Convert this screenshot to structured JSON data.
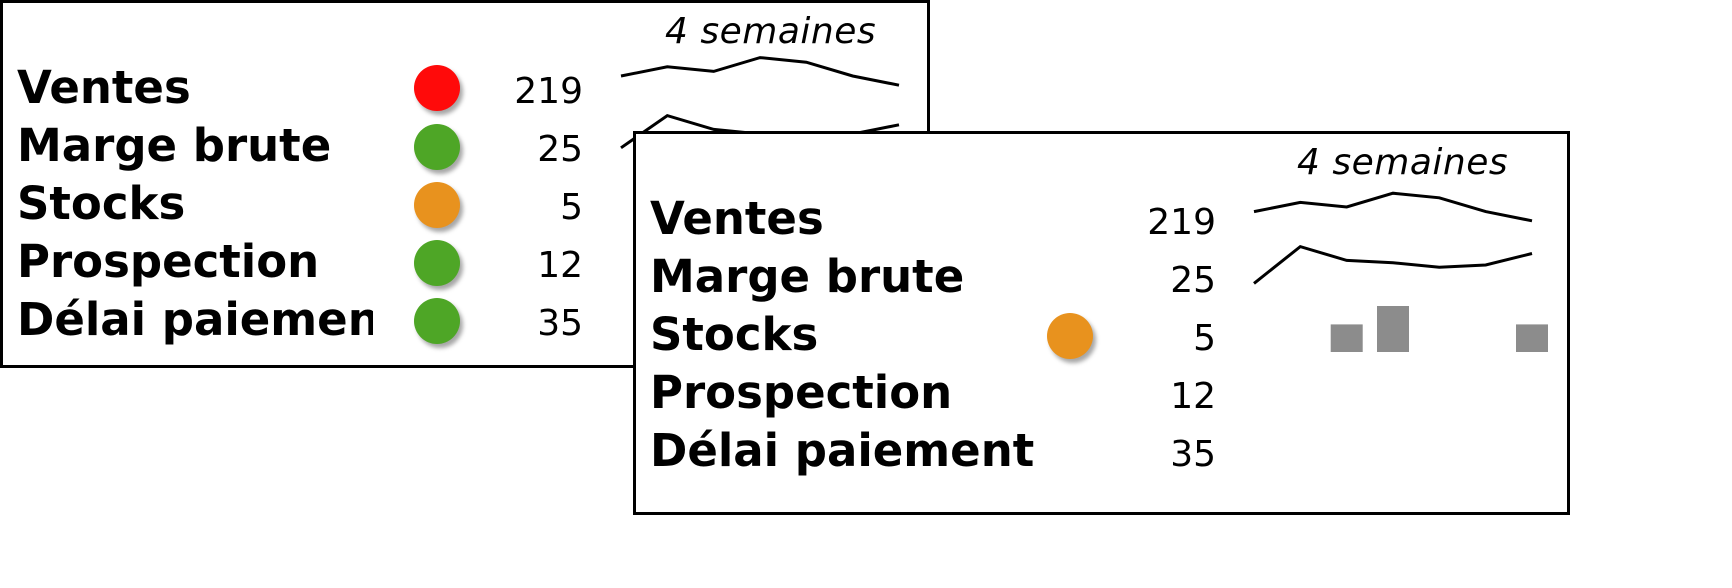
{
  "colors": {
    "red": "#ff0a0a",
    "green": "#4ea626",
    "orange": "#e8921e",
    "bar": "#8c8c8c"
  },
  "chart_data": [
    {
      "type": "table",
      "title": "",
      "period_label": "4 semaines",
      "rows": [
        {
          "label": "Ventes",
          "value": "219",
          "status": "red",
          "spark": {
            "type": "line",
            "values": [
              5,
              7,
              6,
              9,
              8,
              5,
              3
            ]
          }
        },
        {
          "label": "Marge brute",
          "value": "25",
          "status": "green",
          "spark": {
            "type": "line",
            "values": [
              2,
              9,
              6,
              5,
              4,
              5,
              7
            ]
          }
        },
        {
          "label": "Stocks",
          "value": "5",
          "status": "orange",
          "spark": null
        },
        {
          "label": "Prospection",
          "value": "12",
          "status": "green",
          "spark": null
        },
        {
          "label": "Délai paiement",
          "value": "35",
          "status": "green",
          "spark": null
        }
      ]
    },
    {
      "type": "table",
      "title": "",
      "period_label": "4 semaines",
      "rows": [
        {
          "label": "Ventes",
          "value": "219",
          "status": null,
          "spark": {
            "type": "line",
            "values": [
              4,
              6,
              5,
              8,
              7,
              4,
              2
            ]
          }
        },
        {
          "label": "Marge brute",
          "value": "25",
          "status": null,
          "spark": {
            "type": "line",
            "values": [
              1,
              9,
              6,
              5.5,
              4.5,
              5,
              7.5
            ]
          }
        },
        {
          "label": "Stocks",
          "value": "5",
          "status": "orange",
          "spark": {
            "type": "bar",
            "values": [
              null,
              null,
              3,
              5,
              null,
              null,
              3
            ]
          }
        },
        {
          "label": "Prospection",
          "value": "12",
          "status": null,
          "spark": null
        },
        {
          "label": "Délai paiement",
          "value": "35",
          "status": null,
          "spark": null
        }
      ]
    }
  ]
}
